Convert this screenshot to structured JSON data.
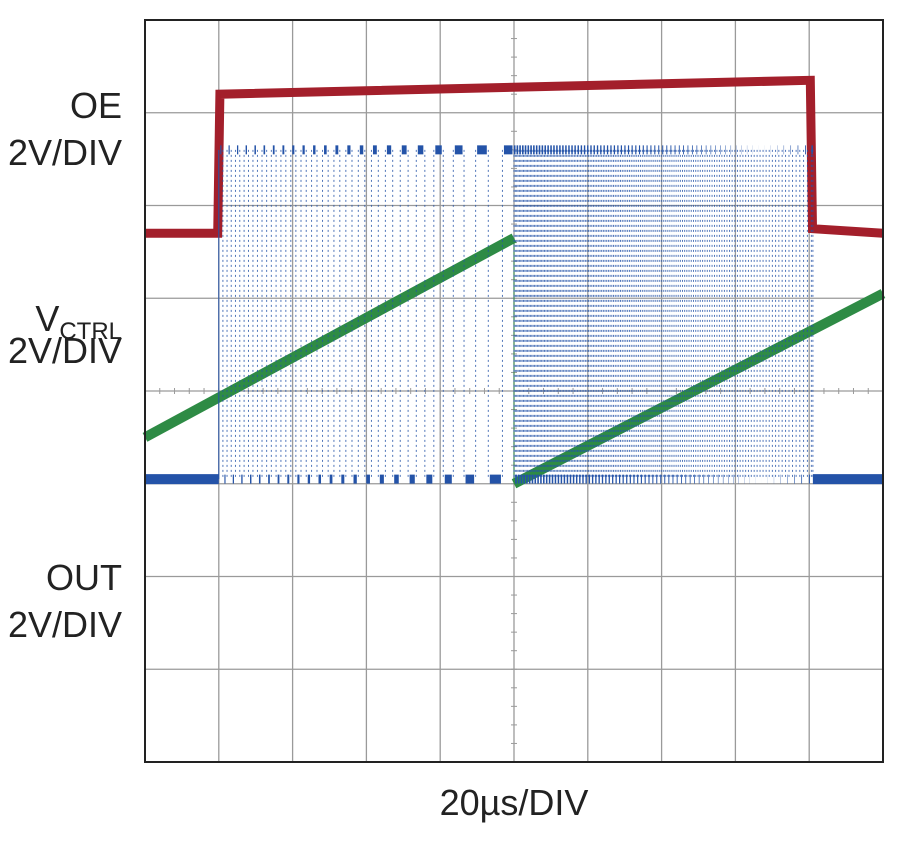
{
  "chart_data": {
    "type": "line",
    "title": "",
    "xlabel": "20µs/DIV",
    "grid": true,
    "divisions": {
      "x": 10,
      "y": 8
    },
    "x_range_us": [
      0,
      200
    ],
    "channel_labels": [
      {
        "name": "OE",
        "sub": "",
        "scale": "2V/DIV"
      },
      {
        "name": "V",
        "sub": "CTRL",
        "scale": "2V/DIV"
      },
      {
        "name": "OUT",
        "sub": "",
        "scale": "2V/DIV"
      }
    ],
    "series": [
      {
        "name": "OE",
        "color": "#a31f2b",
        "unit": "div",
        "x_us": [
          0,
          19.7,
          20.3,
          180.3,
          180.9,
          200
        ],
        "y_div": [
          1.7,
          1.7,
          3.2,
          3.35,
          1.75,
          1.7
        ]
      },
      {
        "name": "VCTRL",
        "color": "#2e8b45",
        "unit": "div",
        "ramps_us": [
          [
            0,
            100
          ],
          [
            100,
            200
          ]
        ],
        "ramp_start_div": [
          -0.5,
          -1.0
        ],
        "ramp_end_div": [
          1.65,
          1.05
        ]
      },
      {
        "name": "OUT",
        "color": "#2453a8",
        "unit": "div",
        "high_div": 2.6,
        "low_div": -0.95,
        "idle_before_us": [
          0,
          20
        ],
        "idle_after_us": [
          181,
          200
        ],
        "pulse_edges_us": [
          [
            20,
            100
          ],
          [
            100,
            181
          ]
        ],
        "edge_frequency_per_us": [
          [
            0.18,
            0.04
          ],
          [
            0.55,
            0.18
          ]
        ]
      }
    ]
  }
}
